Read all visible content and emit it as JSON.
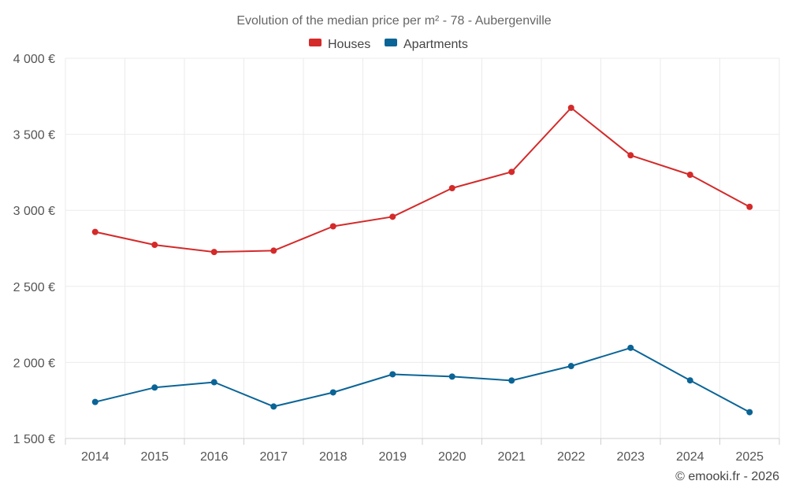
{
  "chart_data": {
    "type": "line",
    "title": "Evolution of the median price per m² - 78 - Aubergenville",
    "categories": [
      "2014",
      "2015",
      "2016",
      "2017",
      "2018",
      "2019",
      "2020",
      "2021",
      "2022",
      "2023",
      "2024",
      "2025"
    ],
    "series": [
      {
        "name": "Houses",
        "color": "#d42a2a",
        "values": [
          2858,
          2773,
          2726,
          2735,
          2895,
          2958,
          3146,
          3253,
          3674,
          3362,
          3234,
          3023
        ]
      },
      {
        "name": "Apartments",
        "color": "#0a6496",
        "values": [
          1740,
          1835,
          1870,
          1710,
          1803,
          1922,
          1907,
          1881,
          1976,
          2096,
          1882,
          1673
        ]
      }
    ],
    "ylim": [
      1500,
      4000
    ],
    "yticks": [
      1500,
      2000,
      2500,
      3000,
      3500,
      4000
    ],
    "ytick_labels": [
      "1 500 €",
      "2 000 €",
      "2 500 €",
      "3 000 €",
      "3 500 €",
      "4 000 €"
    ],
    "xlabel": "",
    "ylabel": "",
    "grid": true,
    "legend_position": "top-center"
  },
  "credit": "© emooki.fr - 2026"
}
